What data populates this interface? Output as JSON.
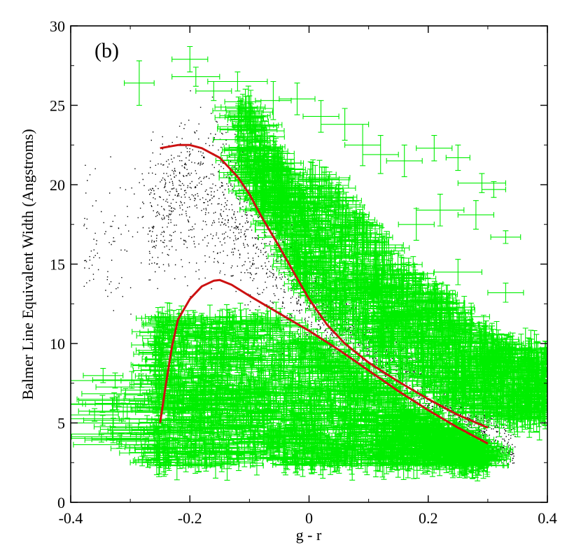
{
  "chart_data": {
    "type": "scatter",
    "panel_label": "(b)",
    "xlabel": "g - r",
    "ylabel": "Balmer Line Equivalent Width (Angstroms)",
    "xlim": [
      -0.4,
      0.4
    ],
    "ylim": [
      0,
      30
    ],
    "x_ticks": [
      -0.4,
      -0.2,
      0,
      0.2,
      0.4
    ],
    "x_tick_labels": [
      "-0.4",
      "-0.2",
      "0",
      "0.2",
      "0.4"
    ],
    "y_ticks": [
      0,
      5,
      10,
      15,
      20,
      25,
      30
    ],
    "y_tick_labels": [
      "0",
      "5",
      "10",
      "15",
      "20",
      "25",
      "30"
    ],
    "grid": false,
    "legend": "none",
    "colors": {
      "black_points": "#000000",
      "green_errorbars": "#00ee00",
      "red_curves": "#cc1111"
    },
    "series": [
      {
        "kind": "upper-envelope-curve",
        "color": "#cc1111",
        "x": [
          -0.25,
          -0.22,
          -0.2,
          -0.18,
          -0.15,
          -0.12,
          -0.1,
          -0.08,
          -0.05,
          -0.02,
          0,
          0.03,
          0.06,
          0.1,
          0.15,
          0.2,
          0.25,
          0.3
        ],
        "y": [
          22.3,
          22.5,
          22.5,
          22.3,
          21.7,
          20.5,
          19.4,
          18.0,
          16.1,
          14.1,
          12.8,
          11.2,
          10.0,
          8.8,
          7.6,
          6.5,
          5.5,
          4.7
        ]
      },
      {
        "kind": "lower-envelope-curve",
        "color": "#cc1111",
        "x": [
          -0.25,
          -0.24,
          -0.23,
          -0.22,
          -0.2,
          -0.18,
          -0.16,
          -0.15,
          -0.13,
          -0.1,
          -0.05,
          0,
          0.05,
          0.1,
          0.15,
          0.2,
          0.25,
          0.3
        ],
        "y": [
          5.0,
          7.5,
          9.8,
          11.5,
          12.8,
          13.6,
          13.95,
          14.0,
          13.7,
          13.0,
          11.9,
          10.8,
          9.6,
          8.3,
          7.0,
          5.8,
          4.7,
          3.7
        ]
      },
      {
        "kind": "black-point-cloud",
        "color": "#000000",
        "description_points": [
          [
            -0.3,
            17
          ],
          [
            -0.2,
            20
          ],
          [
            -0.15,
            19
          ],
          [
            -0.1,
            17
          ],
          [
            -0.05,
            15
          ],
          [
            0,
            13
          ],
          [
            0.05,
            11
          ],
          [
            0.1,
            9.5
          ],
          [
            0.15,
            8.5
          ],
          [
            0.2,
            7
          ],
          [
            0.25,
            6
          ],
          [
            0.3,
            4.5
          ],
          [
            0.33,
            3
          ]
        ]
      },
      {
        "kind": "green-error-bars",
        "color": "#00ee00",
        "points": [
          {
            "x": -0.285,
            "y": 26.4,
            "xerr": 0.025,
            "yerr": 1.4
          },
          {
            "x": -0.2,
            "y": 27.9,
            "xerr": 0.03,
            "yerr": 0.8
          },
          {
            "x": -0.19,
            "y": 26.8,
            "xerr": 0.04,
            "yerr": 0.6
          },
          {
            "x": -0.16,
            "y": 25.9,
            "xerr": 0.03,
            "yerr": 0.6
          },
          {
            "x": -0.12,
            "y": 26.5,
            "xerr": 0.05,
            "yerr": 0.6
          },
          {
            "x": -0.1,
            "y": 24.8,
            "xerr": 0.04,
            "yerr": 0.8
          },
          {
            "x": -0.06,
            "y": 25.3,
            "xerr": 0.03,
            "yerr": 1.2
          },
          {
            "x": -0.02,
            "y": 25.4,
            "xerr": 0.03,
            "yerr": 1.0
          },
          {
            "x": 0.02,
            "y": 24.3,
            "xerr": 0.03,
            "yerr": 1.0
          },
          {
            "x": 0.06,
            "y": 23.8,
            "xerr": 0.04,
            "yerr": 1.0
          },
          {
            "x": 0.09,
            "y": 22.5,
            "xerr": 0.03,
            "yerr": 1.3
          },
          {
            "x": 0.12,
            "y": 21.9,
            "xerr": 0.03,
            "yerr": 1.2
          },
          {
            "x": 0.16,
            "y": 21.5,
            "xerr": 0.03,
            "yerr": 1.0
          },
          {
            "x": 0.21,
            "y": 22.3,
            "xerr": 0.03,
            "yerr": 0.8
          },
          {
            "x": 0.25,
            "y": 21.7,
            "xerr": 0.02,
            "yerr": 0.8
          },
          {
            "x": 0.29,
            "y": 20.1,
            "xerr": 0.04,
            "yerr": 0.6
          },
          {
            "x": 0.31,
            "y": 19.7,
            "xerr": 0.02,
            "yerr": 0.5
          },
          {
            "x": 0.33,
            "y": 16.7,
            "xerr": 0.025,
            "yerr": 0.4
          },
          {
            "x": 0.28,
            "y": 18.1,
            "xerr": 0.03,
            "yerr": 0.9
          },
          {
            "x": 0.22,
            "y": 18.4,
            "xerr": 0.04,
            "yerr": 1.0
          },
          {
            "x": 0.18,
            "y": 17.5,
            "xerr": 0.03,
            "yerr": 1.0
          },
          {
            "x": 0.25,
            "y": 14.5,
            "xerr": 0.04,
            "yerr": 0.8
          },
          {
            "x": 0.33,
            "y": 13.2,
            "xerr": 0.03,
            "yerr": 0.6
          },
          {
            "x": 0.37,
            "y": 9.7,
            "xerr": 0.03,
            "yerr": 0.6
          },
          {
            "x": 0.36,
            "y": 8.2,
            "xerr": 0.03,
            "yerr": 0.7
          },
          {
            "x": -0.09,
            "y": 11.0,
            "xerr": 0.04,
            "yerr": 0.8
          },
          {
            "x": -0.18,
            "y": 11.2,
            "xerr": 0.03,
            "yerr": 0.7
          },
          {
            "x": -0.21,
            "y": 9.8,
            "xerr": 0.03,
            "yerr": 0.6
          },
          {
            "x": -0.26,
            "y": 8.3,
            "xerr": 0.035,
            "yerr": 0.5
          },
          {
            "x": -0.33,
            "y": 6.2,
            "xerr": 0.05,
            "yerr": 0.4
          },
          {
            "x": -0.36,
            "y": 5.5,
            "xerr": 0.04,
            "yerr": 0.4
          },
          {
            "x": -0.33,
            "y": 4.3,
            "xerr": 0.07,
            "yerr": 0.4
          },
          {
            "x": -0.29,
            "y": 4.0,
            "xerr": 0.05,
            "yerr": 0.4
          },
          {
            "x": -0.28,
            "y": 2.6,
            "xerr": 0.015,
            "yerr": 0.3
          },
          {
            "x": -0.27,
            "y": 2.5,
            "xerr": 0.03,
            "yerr": 0.3
          },
          {
            "x": -0.22,
            "y": 6.3,
            "xerr": 0.05,
            "yerr": 0.6
          },
          {
            "x": -0.19,
            "y": 3.4,
            "xerr": 0.05,
            "yerr": 0.5
          },
          {
            "x": -0.16,
            "y": 5.2,
            "xerr": 0.05,
            "yerr": 0.6
          },
          {
            "x": -0.12,
            "y": 3.2,
            "xerr": 0.05,
            "yerr": 0.5
          },
          {
            "x": -0.1,
            "y": 7.0,
            "xerr": 0.04,
            "yerr": 0.7
          },
          {
            "x": -0.06,
            "y": 4.7,
            "xerr": 0.04,
            "yerr": 0.6
          },
          {
            "x": 0.0,
            "y": 3.8,
            "xerr": 0.04,
            "yerr": 0.6
          },
          {
            "x": 0.06,
            "y": 3.0,
            "xerr": 0.04,
            "yerr": 0.5
          },
          {
            "x": 0.12,
            "y": 2.8,
            "xerr": 0.03,
            "yerr": 0.5
          },
          {
            "x": 0.18,
            "y": 3.1,
            "xerr": 0.03,
            "yerr": 0.5
          },
          {
            "x": 0.24,
            "y": 2.5,
            "xerr": 0.03,
            "yerr": 0.4
          }
        ]
      }
    ]
  }
}
